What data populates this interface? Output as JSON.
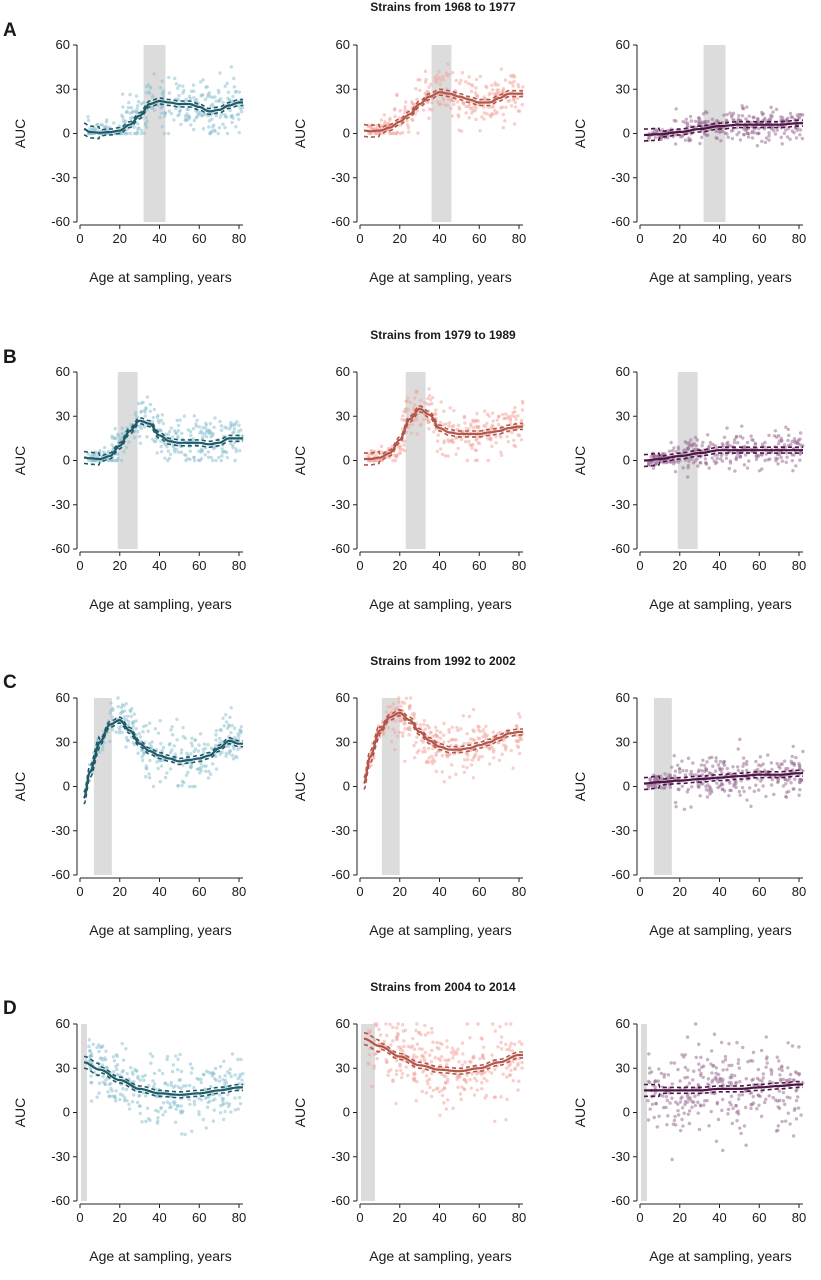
{
  "figure": {
    "xlabel": "Age at sampling, years",
    "ylabel": "AUC",
    "xticks": [
      0,
      20,
      40,
      60,
      80
    ],
    "yticks": [
      60,
      30,
      0,
      -30,
      -60
    ]
  },
  "series_colors": {
    "col1": "#1f5a68",
    "col2": "#b3564a",
    "col3": "#4b1545"
  },
  "point_colors": {
    "col1": "#8ec1d1",
    "col2": "#f2a7a0",
    "col3": "#9a6f96"
  },
  "shade_color": "#dcdcdc",
  "chart_data": [
    {
      "letter": "A",
      "title": "Strains from 1968 to 1977",
      "type": "scatter",
      "xlim": [
        0,
        82
      ],
      "ylim": [
        -60,
        60
      ],
      "xlabel": "Age at sampling, years",
      "ylabel": "AUC",
      "panels": [
        {
          "column": 1,
          "shaded_x": [
            32,
            43
          ],
          "points_spread": 9,
          "fit": {
            "x": [
              2,
              5,
              10,
              15,
              20,
              25,
              30,
              35,
              40,
              45,
              50,
              55,
              60,
              65,
              70,
              75,
              80
            ],
            "y": [
              3,
              1,
              0.5,
              1,
              2,
              6,
              12,
              20,
              22,
              21,
              20,
              20,
              18,
              15,
              16,
              19,
              21
            ]
          }
        },
        {
          "column": 2,
          "shaded_x": [
            36,
            46
          ],
          "points_spread": 8,
          "fit": {
            "x": [
              2,
              5,
              10,
              15,
              20,
              25,
              30,
              35,
              40,
              45,
              50,
              55,
              60,
              65,
              70,
              75,
              80
            ],
            "y": [
              2,
              1.5,
              2,
              4,
              8,
              13,
              20,
              25,
              28,
              27,
              25,
              23,
              21,
              21,
              24,
              27,
              27
            ]
          }
        },
        {
          "column": 3,
          "shaded_x": [
            32,
            43
          ],
          "points_spread": 5,
          "fit": {
            "x": [
              2,
              10,
              20,
              30,
              40,
              50,
              60,
              70,
              80
            ],
            "y": [
              -1,
              -0.5,
              1,
              3,
              5,
              6,
              6,
              6,
              7
            ]
          }
        }
      ]
    },
    {
      "letter": "B",
      "title": "Strains from 1979 to 1989",
      "type": "scatter",
      "xlim": [
        0,
        82
      ],
      "ylim": [
        -60,
        60
      ],
      "xlabel": "Age at sampling, years",
      "ylabel": "AUC",
      "panels": [
        {
          "column": 1,
          "shaded_x": [
            19,
            29
          ],
          "points_spread": 8,
          "fit": {
            "x": [
              2,
              5,
              10,
              15,
              20,
              25,
              30,
              35,
              40,
              45,
              50,
              55,
              60,
              65,
              70,
              75,
              80
            ],
            "y": [
              2,
              1.5,
              1,
              3,
              10,
              20,
              27,
              25,
              17,
              13,
              12,
              12,
              12,
              11,
              12,
              15,
              15
            ]
          }
        },
        {
          "column": 2,
          "shaded_x": [
            23,
            33
          ],
          "points_spread": 8,
          "fit": {
            "x": [
              2,
              5,
              10,
              15,
              20,
              25,
              30,
              35,
              40,
              45,
              50,
              55,
              60,
              65,
              70,
              75,
              80
            ],
            "y": [
              1,
              1,
              2,
              5,
              14,
              28,
              35,
              31,
              22,
              19,
              18,
              18,
              18,
              19,
              20,
              22,
              23
            ]
          }
        },
        {
          "column": 3,
          "shaded_x": [
            19,
            29
          ],
          "points_spread": 6,
          "fit": {
            "x": [
              2,
              10,
              20,
              30,
              40,
              50,
              60,
              70,
              80
            ],
            "y": [
              0,
              1,
              3,
              5,
              7,
              7,
              7,
              7,
              7
            ]
          }
        }
      ]
    },
    {
      "letter": "C",
      "title": "Strains from 1992 to 2002",
      "type": "scatter",
      "xlim": [
        0,
        82
      ],
      "ylim": [
        -60,
        60
      ],
      "xlabel": "Age at sampling, years",
      "ylabel": "AUC",
      "panels": [
        {
          "column": 1,
          "shaded_x": [
            7,
            16
          ],
          "points_spread": 9,
          "fit": {
            "x": [
              2,
              5,
              10,
              15,
              20,
              25,
              30,
              35,
              40,
              45,
              50,
              55,
              60,
              65,
              70,
              75,
              80
            ],
            "y": [
              -8,
              10,
              30,
              42,
              45,
              38,
              29,
              24,
              21,
              19,
              17,
              18,
              19,
              21,
              26,
              31,
              29
            ]
          }
        },
        {
          "column": 2,
          "shaded_x": [
            11,
            20
          ],
          "points_spread": 9,
          "fit": {
            "x": [
              2,
              5,
              10,
              15,
              20,
              25,
              30,
              35,
              40,
              45,
              50,
              55,
              60,
              65,
              70,
              75,
              80
            ],
            "y": [
              2,
              20,
              38,
              47,
              50,
              45,
              37,
              31,
              27,
              25,
              25,
              26,
              28,
              30,
              33,
              36,
              37
            ]
          }
        },
        {
          "column": 3,
          "shaded_x": [
            7,
            16
          ],
          "points_spread": 7,
          "fit": {
            "x": [
              2,
              10,
              20,
              30,
              40,
              50,
              60,
              70,
              80
            ],
            "y": [
              2,
              3,
              4,
              5,
              6,
              7,
              8,
              8,
              9
            ]
          }
        }
      ]
    },
    {
      "letter": "D",
      "title": "Strains from 2004 to 2014",
      "type": "scatter",
      "xlim": [
        0,
        82
      ],
      "ylim": [
        -60,
        60
      ],
      "xlabel": "Age at sampling, years",
      "ylabel": "AUC",
      "panels": [
        {
          "column": 1,
          "shaded_x": [
            0.5,
            3.5
          ],
          "points_spread": 11,
          "fit": {
            "x": [
              2,
              10,
              20,
              30,
              40,
              50,
              60,
              70,
              80
            ],
            "y": [
              34,
              29,
              22,
              16,
              13,
              12,
              13,
              15,
              17
            ]
          }
        },
        {
          "column": 2,
          "shaded_x": [
            0.5,
            7.5
          ],
          "points_spread": 13,
          "fit": {
            "x": [
              2,
              10,
              20,
              30,
              40,
              50,
              60,
              70,
              80
            ],
            "y": [
              50,
              45,
              38,
              32,
              29,
              28,
              30,
              34,
              39
            ]
          }
        },
        {
          "column": 3,
          "shaded_x": [
            0.5,
            3.5
          ],
          "points_spread": 15,
          "fit": {
            "x": [
              2,
              10,
              20,
              30,
              40,
              50,
              60,
              70,
              80
            ],
            "y": [
              15,
              15,
              15,
              15,
              16,
              16,
              17,
              18,
              19
            ]
          }
        }
      ]
    }
  ]
}
